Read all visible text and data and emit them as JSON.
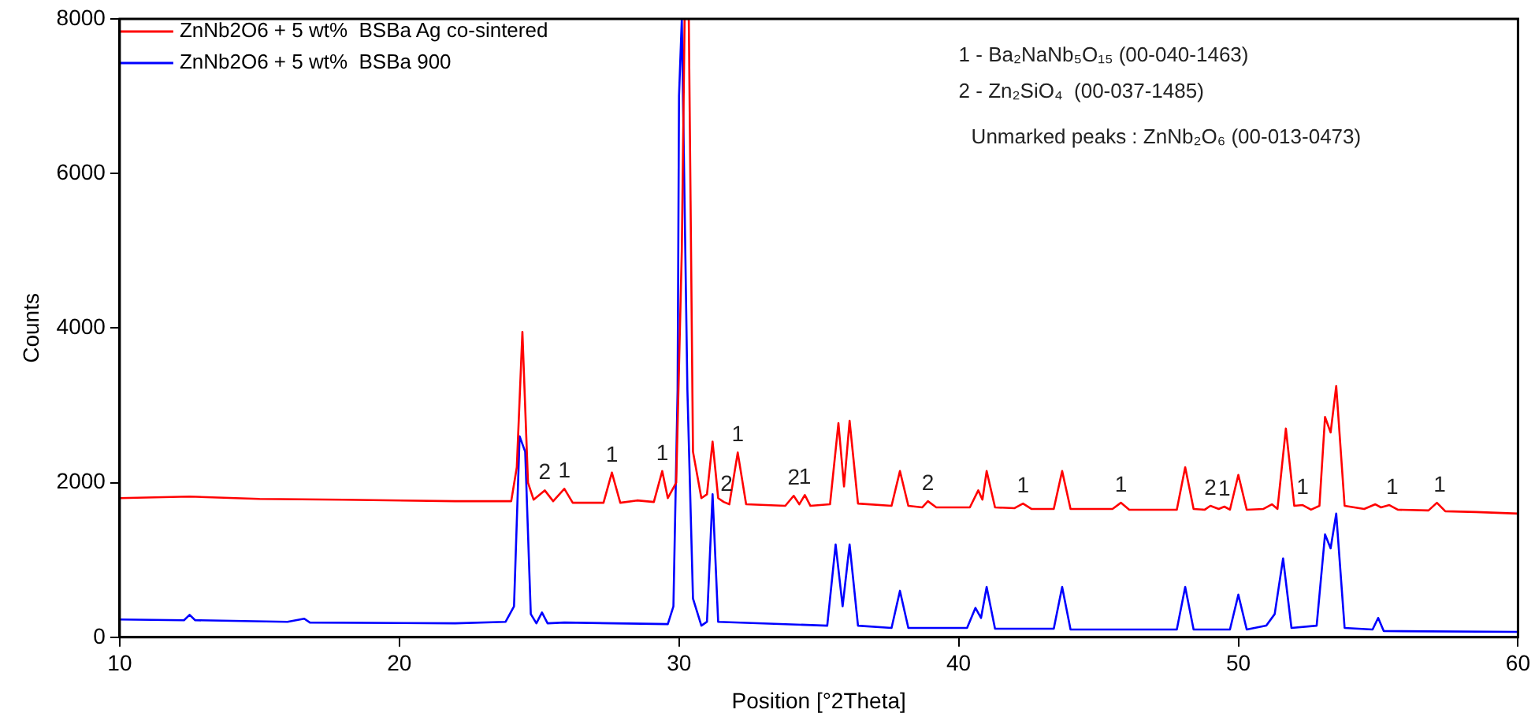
{
  "chart_data": {
    "type": "line",
    "xlabel": "Position [°2Theta]",
    "ylabel": "Counts",
    "xlim": [
      10,
      60
    ],
    "ylim": [
      0,
      8000
    ],
    "xticks": [
      10,
      20,
      30,
      40,
      50,
      60
    ],
    "yticks": [
      0,
      2000,
      4000,
      6000,
      8000
    ],
    "grid": false,
    "legend": "top left",
    "marker": "none",
    "line_style": "solid",
    "series": [
      {
        "name": "ZnNb2O6 + 5 wt%  BSBa Ag co-sintered",
        "color": "#ff0000",
        "x": [
          10,
          12.5,
          15,
          18,
          22,
          24.0,
          24.2,
          24.4,
          24.6,
          24.8,
          25.2,
          25.5,
          25.9,
          26.2,
          27.3,
          27.6,
          27.9,
          28.5,
          29.1,
          29.4,
          29.6,
          29.9,
          30.1,
          30.2,
          30.35,
          30.5,
          30.8,
          31.0,
          31.2,
          31.4,
          31.6,
          31.8,
          32.1,
          32.4,
          33.8,
          34.1,
          34.3,
          34.5,
          34.7,
          35.4,
          35.7,
          35.9,
          36.1,
          36.4,
          37.6,
          37.9,
          38.2,
          38.7,
          38.9,
          39.2,
          40.4,
          40.7,
          40.85,
          41.0,
          41.3,
          42.0,
          42.3,
          42.6,
          43.4,
          43.7,
          44.0,
          45.5,
          45.8,
          46.1,
          47.8,
          48.1,
          48.4,
          48.8,
          49.0,
          49.3,
          49.5,
          49.7,
          50.0,
          50.3,
          50.9,
          51.2,
          51.4,
          51.7,
          52.0,
          52.3,
          52.6,
          52.9,
          53.1,
          53.3,
          53.5,
          53.8,
          54.5,
          54.9,
          55.1,
          55.4,
          55.7,
          56.8,
          57.1,
          57.4,
          58.5,
          60
        ],
        "values": [
          1800,
          1820,
          1790,
          1780,
          1760,
          1760,
          2200,
          3950,
          2000,
          1780,
          1900,
          1760,
          1920,
          1740,
          1740,
          2130,
          1740,
          1770,
          1750,
          2150,
          1800,
          2000,
          5000,
          8000,
          8000,
          2400,
          1800,
          1850,
          2530,
          1800,
          1750,
          1720,
          2390,
          1720,
          1700,
          1830,
          1720,
          1840,
          1700,
          1720,
          2770,
          1950,
          2800,
          1730,
          1700,
          2150,
          1700,
          1680,
          1760,
          1680,
          1680,
          1900,
          1780,
          2150,
          1680,
          1670,
          1730,
          1660,
          1660,
          2150,
          1660,
          1660,
          1740,
          1650,
          1650,
          2200,
          1660,
          1650,
          1700,
          1660,
          1690,
          1650,
          2100,
          1650,
          1660,
          1720,
          1660,
          2700,
          1700,
          1710,
          1650,
          1700,
          2850,
          2650,
          3250,
          1700,
          1660,
          1720,
          1680,
          1710,
          1650,
          1640,
          1740,
          1630,
          1620,
          1600
        ]
      },
      {
        "name": "ZnNb2O6 + 5 wt%  BSBa 900",
        "color": "#0000ff",
        "x": [
          10,
          12.3,
          12.5,
          12.7,
          16,
          16.6,
          16.8,
          22,
          23.8,
          24.1,
          24.3,
          24.5,
          24.7,
          24.9,
          25.1,
          25.3,
          25.9,
          29.6,
          29.8,
          29.95,
          30.0,
          30.1,
          30.3,
          30.5,
          30.8,
          31.0,
          31.2,
          31.4,
          35.3,
          35.6,
          35.85,
          36.1,
          36.4,
          37.6,
          37.9,
          38.2,
          40.3,
          40.6,
          40.8,
          41.0,
          41.3,
          43.4,
          43.7,
          44.0,
          47.8,
          48.1,
          48.4,
          49.7,
          50.0,
          50.3,
          51.0,
          51.3,
          51.6,
          51.9,
          52.8,
          53.1,
          53.3,
          53.5,
          53.8,
          54.8,
          55.0,
          55.2,
          60
        ],
        "values": [
          230,
          220,
          290,
          220,
          200,
          240,
          190,
          180,
          200,
          400,
          2600,
          2400,
          300,
          180,
          320,
          180,
          190,
          170,
          400,
          3200,
          7000,
          8000,
          3200,
          500,
          150,
          200,
          1850,
          200,
          150,
          1200,
          400,
          1200,
          150,
          120,
          600,
          120,
          120,
          380,
          250,
          650,
          110,
          110,
          650,
          100,
          100,
          650,
          100,
          100,
          550,
          100,
          150,
          300,
          1020,
          120,
          150,
          1330,
          1150,
          1600,
          120,
          100,
          250,
          80,
          70
        ]
      }
    ],
    "annotations": [
      {
        "text": "2",
        "x": 25.2,
        "y": 1900
      },
      {
        "text": "1",
        "x": 25.9,
        "y": 1920
      },
      {
        "text": "1",
        "x": 27.6,
        "y": 2130
      },
      {
        "text": "1",
        "x": 29.4,
        "y": 2150
      },
      {
        "text": "2",
        "x": 31.7,
        "y": 1750
      },
      {
        "text": "1",
        "x": 32.1,
        "y": 2390
      },
      {
        "text": "2",
        "x": 34.1,
        "y": 1830
      },
      {
        "text": "1",
        "x": 34.5,
        "y": 1840
      },
      {
        "text": "2",
        "x": 38.9,
        "y": 1760
      },
      {
        "text": "1",
        "x": 42.3,
        "y": 1730
      },
      {
        "text": "1",
        "x": 45.8,
        "y": 1740
      },
      {
        "text": "2",
        "x": 49.0,
        "y": 1700
      },
      {
        "text": "1",
        "x": 49.5,
        "y": 1690
      },
      {
        "text": "1",
        "x": 52.3,
        "y": 1710
      },
      {
        "text": "1",
        "x": 55.5,
        "y": 1710
      },
      {
        "text": "1",
        "x": 57.2,
        "y": 1740
      },
      "1 - Ba₂NaNb₅O₁₅ (00-040-1463)",
      "2 - Zn₂SiO₄  (00-037-1485)",
      "Unmarked peaks : ZnNb₂O₆ (00-013-0473)"
    ]
  }
}
